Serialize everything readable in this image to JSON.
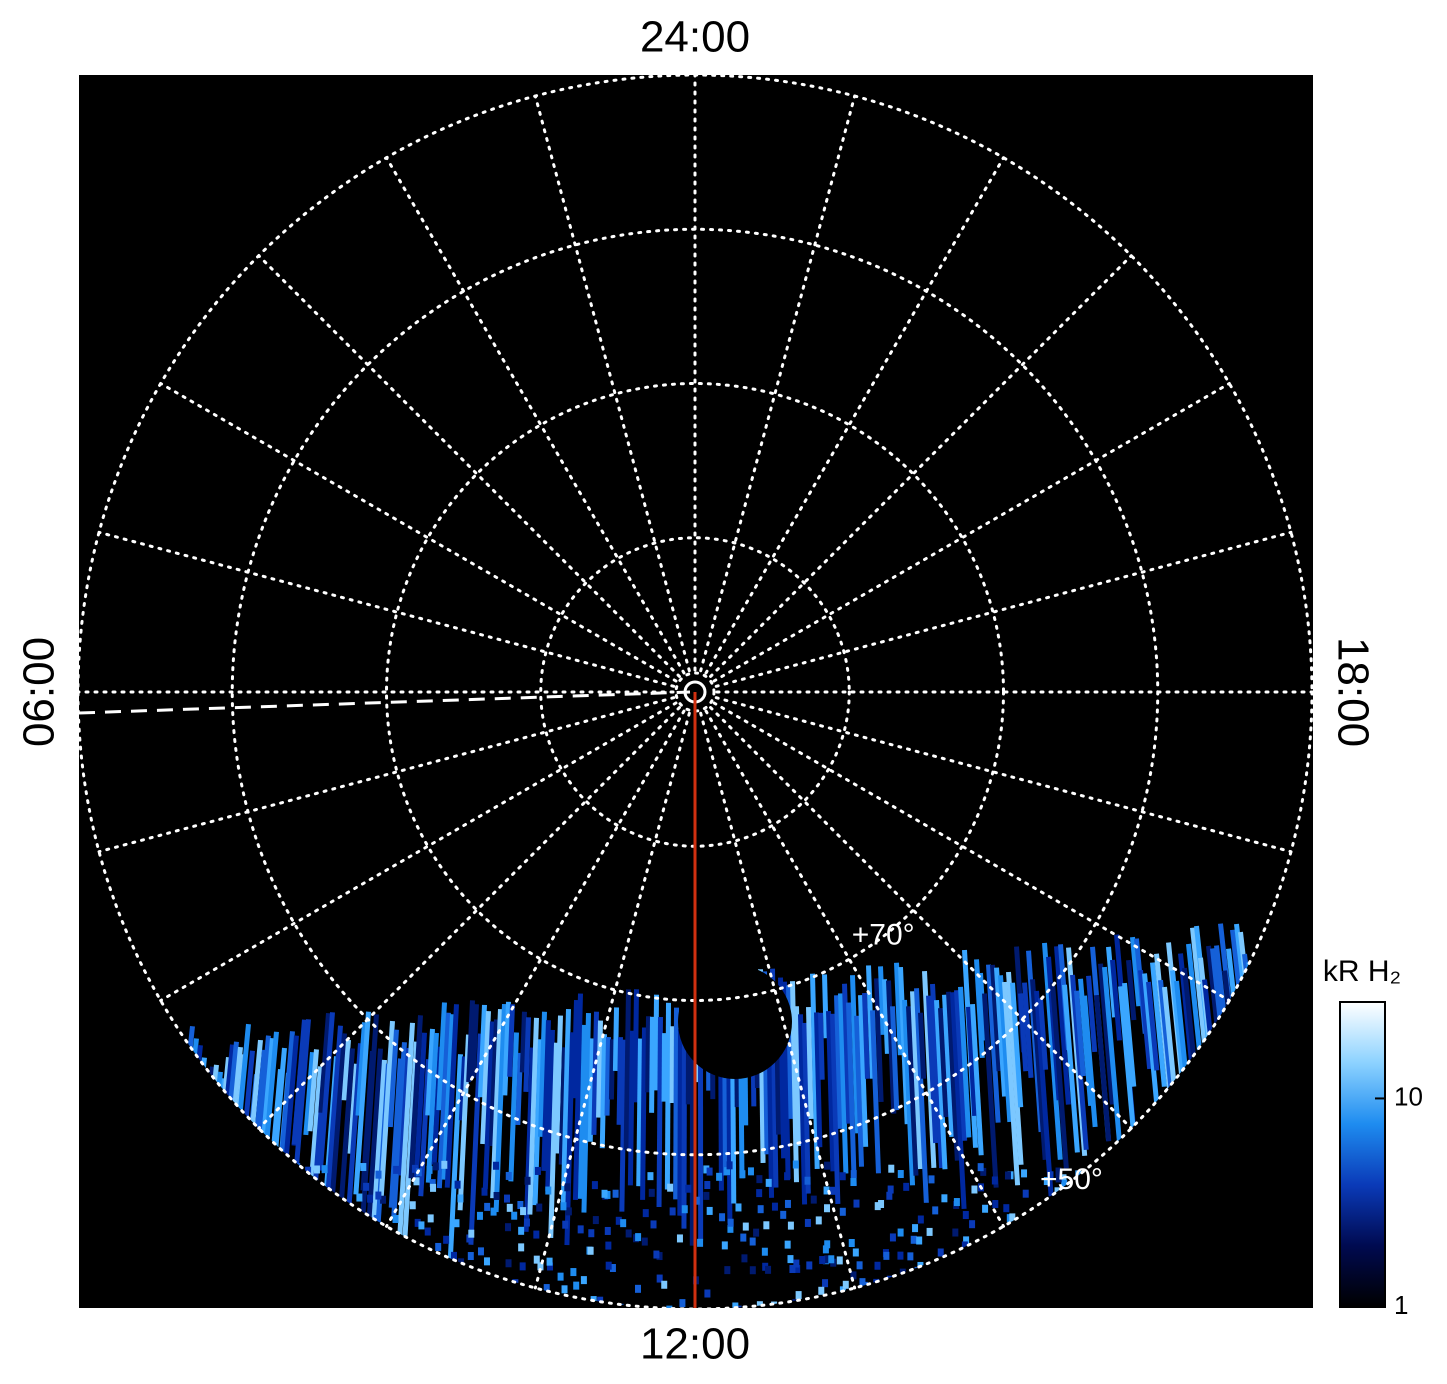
{
  "chart_data": {
    "type": "polar",
    "time_labels": [
      "24:00",
      "06:00",
      "12:00",
      "18:00"
    ],
    "rlim": [
      90,
      50
    ],
    "lat_rings": [
      80,
      70,
      60,
      50
    ],
    "lat_labels": [
      {
        "value": 70,
        "label": "+70°"
      },
      {
        "value": 50,
        "label": "+50°"
      }
    ],
    "meridian_count": 24,
    "colorbar": {
      "label": "kR H₂",
      "clim": [
        1,
        29
      ],
      "ticks": [
        1,
        10
      ],
      "log": true,
      "colors": [
        "#000000",
        "#000a50",
        "#0a3ab8",
        "#1e8cf0",
        "#8cd2ff",
        "#ffffff"
      ]
    }
  }
}
